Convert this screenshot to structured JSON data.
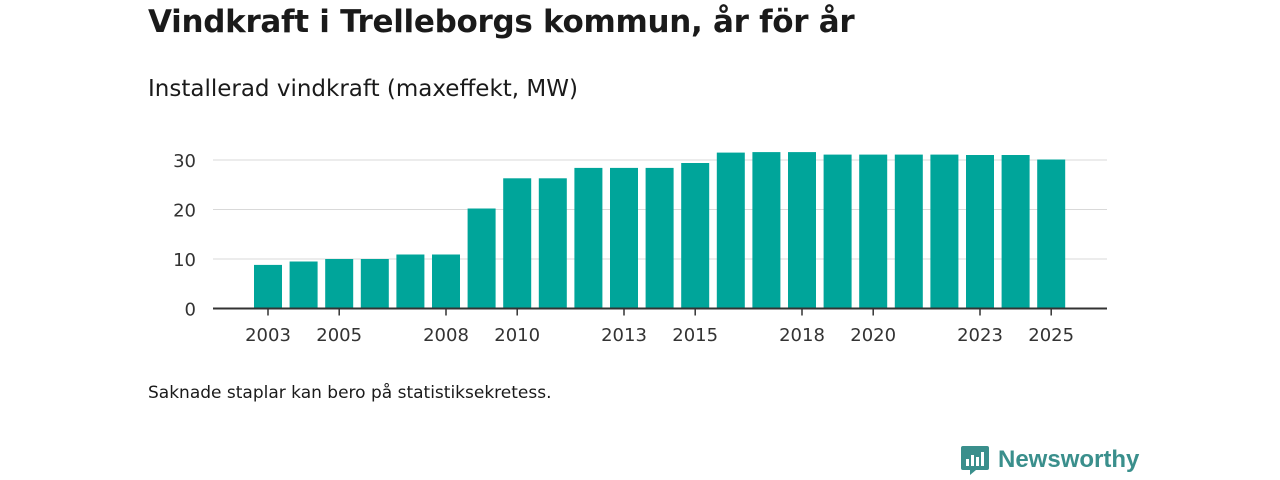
{
  "header": {
    "title": "Vindkraft i Trelleborgs kommun, år för år",
    "subtitle": "Installerad vindkraft (maxeffekt, MW)"
  },
  "footer": {
    "note": "Saknade staplar kan bero på statistiksekretess.",
    "brand": "Newsworthy"
  },
  "colors": {
    "bar": "#00a59a",
    "grid": "#d9d9d9",
    "axis": "#333333",
    "brand": "#3a8f8c"
  },
  "chart_data": {
    "type": "bar",
    "title": "Installerad vindkraft (maxeffekt, MW)",
    "xlabel": "",
    "ylabel": "",
    "categories": [
      "2003",
      "2004",
      "2005",
      "2006",
      "2007",
      "2008",
      "2009",
      "2010",
      "2011",
      "2012",
      "2013",
      "2014",
      "2015",
      "2016",
      "2017",
      "2018",
      "2019",
      "2020",
      "2021",
      "2022",
      "2023",
      "2024",
      "2025"
    ],
    "values": [
      8.8,
      9.5,
      10.0,
      10.0,
      10.9,
      10.9,
      20.2,
      26.3,
      26.3,
      28.4,
      28.4,
      28.4,
      29.4,
      31.5,
      31.6,
      31.6,
      31.1,
      31.1,
      31.1,
      31.1,
      31.0,
      31.0,
      30.1
    ],
    "xticks": [
      "2003",
      "2005",
      "2008",
      "2010",
      "2013",
      "2015",
      "2018",
      "2020",
      "2023",
      "2025"
    ],
    "yticks": [
      0,
      10,
      20,
      30
    ],
    "ylim": [
      0,
      33
    ],
    "grid": true,
    "legend": "none"
  }
}
